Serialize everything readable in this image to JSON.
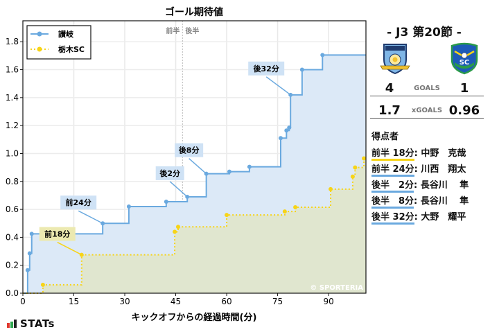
{
  "chart_data": {
    "type": "line",
    "subtype": "step",
    "title": "ゴール期待値",
    "xlabel": "キックオフからの経過時間(分)",
    "ylabel": "",
    "xlim": [
      0,
      101
    ],
    "ylim": [
      0,
      1.95
    ],
    "xticks": [
      0,
      15,
      30,
      45,
      60,
      75,
      90
    ],
    "yticks": [
      0.0,
      0.2,
      0.4,
      0.6,
      0.8,
      1.0,
      1.2,
      1.4,
      1.6,
      1.8
    ],
    "grid": true,
    "legend_position": "upper left",
    "half_marker": {
      "x": 47,
      "labels": [
        "前半",
        "後半"
      ]
    },
    "watermark": "© SPORTERIA",
    "series": [
      {
        "name": "讃岐",
        "color": "#6aa9df",
        "line_style": "solid",
        "points": [
          [
            1.4,
            0.165
          ],
          [
            2.0,
            0.285
          ],
          [
            2.6,
            0.425
          ],
          [
            23.5,
            0.5
          ],
          [
            31.2,
            0.62
          ],
          [
            42.2,
            0.655
          ],
          [
            48.4,
            0.69
          ],
          [
            54.0,
            0.855
          ],
          [
            60.8,
            0.87
          ],
          [
            66.7,
            0.905
          ],
          [
            75.9,
            1.11
          ],
          [
            77.6,
            1.165
          ],
          [
            78.4,
            1.185
          ],
          [
            78.8,
            1.42
          ],
          [
            82.2,
            1.6
          ],
          [
            88.2,
            1.705
          ]
        ],
        "end_x": 101
      },
      {
        "name": "栃木SC",
        "color": "#f7d417",
        "line_style": "dotted",
        "points": [
          [
            5.9,
            0.06
          ],
          [
            17.3,
            0.275
          ],
          [
            44.7,
            0.44
          ],
          [
            45.7,
            0.475
          ],
          [
            60.0,
            0.56
          ],
          [
            77.1,
            0.585
          ],
          [
            80.2,
            0.615
          ],
          [
            90.6,
            0.745
          ],
          [
            97.1,
            0.835
          ],
          [
            97.8,
            0.9
          ],
          [
            100.4,
            0.965
          ]
        ],
        "end_x": 101
      }
    ],
    "annotations": [
      {
        "text": "前18分",
        "team": "away",
        "x": 17.3,
        "y": 0.275
      },
      {
        "text": "前24分",
        "team": "home",
        "x": 23.5,
        "y": 0.5
      },
      {
        "text": "後2分",
        "team": "home",
        "x": 48.4,
        "y": 0.69
      },
      {
        "text": "後8分",
        "team": "home",
        "x": 54.0,
        "y": 0.855
      },
      {
        "text": "後32分",
        "team": "home",
        "x": 78.8,
        "y": 1.42
      }
    ]
  },
  "match": {
    "title": "- J3 第20節 -",
    "home": {
      "name": "讃岐",
      "goals": "4",
      "xgoals": "1.7",
      "color": "#6aa9df"
    },
    "away": {
      "name": "栃木SC",
      "goals": "1",
      "xgoals": "0.96",
      "color": "#f7d417"
    },
    "goals_label": "GOALS",
    "xgoals_label": "xGOALS"
  },
  "scorers": {
    "title": "得点者",
    "items": [
      {
        "time": "前半 18分",
        "player": "中野　克哉",
        "team": "away"
      },
      {
        "time": "前半 24分",
        "player": "川西　翔太",
        "team": "home"
      },
      {
        "time": "後半　2分",
        "player": "長谷川　 隼",
        "team": "home"
      },
      {
        "time": "後半　8分",
        "player": "長谷川　 隼",
        "team": "home"
      },
      {
        "time": "後半 32分",
        "player": "大野　耀平",
        "team": "home"
      }
    ]
  },
  "brand": {
    "label": "STATs"
  }
}
